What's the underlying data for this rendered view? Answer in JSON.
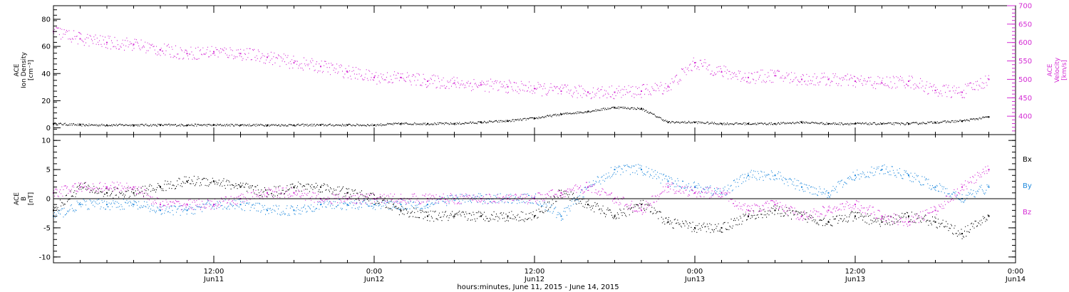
{
  "chart_data": {
    "type": "scatter",
    "x_range": [
      "2015-06-11T00:00",
      "2015-06-14T00:00"
    ],
    "x_ticks": [
      {
        "t": "2015-06-11T12:00",
        "time": "12:00",
        "date": "Jun11"
      },
      {
        "t": "2015-06-12T00:00",
        "time": "0:00",
        "date": "Jun12"
      },
      {
        "t": "2015-06-12T12:00",
        "time": "12:00",
        "date": "Jun12"
      },
      {
        "t": "2015-06-13T00:00",
        "time": "0:00",
        "date": "Jun13"
      },
      {
        "t": "2015-06-13T12:00",
        "time": "12:00",
        "date": "Jun13"
      },
      {
        "t": "2015-06-14T00:00",
        "time": "0:00",
        "date": "Jun14"
      }
    ],
    "xlabel": "hours:minutes, June 11, 2015 - June 14, 2015",
    "colors": {
      "black": "#000000",
      "magenta": "#d42ad4",
      "blue": "#1e88dc"
    },
    "panels": [
      {
        "id": "plasma",
        "left_axis": {
          "label_lines": [
            "ACE",
            "Ion Density",
            "[cm⁻³]"
          ],
          "range": [
            -5,
            90
          ],
          "ticks": [
            0,
            20,
            40,
            60,
            80
          ],
          "tick_labels": [
            "0",
            "20",
            "40",
            "60",
            "80"
          ]
        },
        "right_axis": {
          "label_lines": [
            "ACE",
            "Velocity",
            "[km/s]"
          ],
          "range": [
            350,
            700
          ],
          "ticks": [
            400,
            450,
            500,
            550,
            600,
            650,
            700
          ],
          "tick_labels": [
            "400",
            "450",
            "500",
            "550",
            "600",
            "650",
            "700"
          ],
          "color": "#d42ad4"
        },
        "series": [
          {
            "name": "density",
            "axis": "left",
            "color": "#000000",
            "t_hours": [
              0,
              2,
              4,
              6,
              8,
              10,
              12,
              14,
              16,
              18,
              20,
              22,
              24,
              26,
              28,
              30,
              32,
              34,
              36,
              38,
              40,
              42,
              44,
              46,
              48,
              50,
              52,
              54,
              56,
              58,
              60,
              62,
              64,
              66,
              68,
              70
            ],
            "values": [
              3,
              2,
              2,
              2,
              2,
              2,
              2,
              2,
              2,
              2,
              2,
              2,
              2,
              3,
              3,
              3,
              4,
              5,
              7,
              10,
              12,
              15,
              14,
              4,
              4,
              3,
              3,
              3,
              4,
              3,
              3,
              3,
              3,
              4,
              5,
              8
            ]
          },
          {
            "name": "velocity",
            "axis": "right",
            "color": "#d42ad4",
            "t_hours": [
              0,
              2,
              4,
              6,
              8,
              10,
              12,
              14,
              16,
              18,
              20,
              22,
              24,
              26,
              28,
              30,
              32,
              34,
              36,
              38,
              40,
              42,
              44,
              46,
              48,
              50,
              52,
              54,
              56,
              58,
              60,
              62,
              64,
              66,
              68,
              70
            ],
            "values": [
              630,
              610,
              600,
              595,
              580,
              570,
              575,
              570,
              560,
              545,
              535,
              520,
              505,
              505,
              495,
              490,
              485,
              480,
              475,
              468,
              465,
              465,
              468,
              480,
              545,
              520,
              505,
              510,
              500,
              500,
              495,
              490,
              495,
              470,
              465,
              500
            ]
          }
        ]
      },
      {
        "id": "field",
        "left_axis": {
          "label_lines": [
            "ACE",
            "B",
            "[nT]"
          ],
          "range": [
            -11,
            11
          ],
          "ticks": [
            -10,
            -5,
            0,
            5,
            10
          ],
          "tick_labels": [
            "-10",
            "-5",
            "0",
            "5",
            "10"
          ]
        },
        "zero_line": true,
        "legend": [
          {
            "label": "Bx",
            "color": "#000000"
          },
          {
            "label": "By",
            "color": "#1e88dc"
          },
          {
            "label": "Bz",
            "color": "#d42ad4"
          }
        ],
        "series": [
          {
            "name": "Bx",
            "color": "#000000",
            "t_hours": [
              0,
              2,
              4,
              6,
              8,
              10,
              12,
              14,
              16,
              18,
              20,
              22,
              24,
              26,
              28,
              30,
              32,
              34,
              36,
              38,
              40,
              42,
              44,
              46,
              48,
              50,
              52,
              54,
              56,
              58,
              60,
              62,
              64,
              66,
              68,
              70
            ],
            "values": [
              -2,
              2,
              1,
              1,
              2,
              3,
              3,
              2,
              1,
              2,
              2,
              1,
              0,
              -2,
              -3,
              -3,
              -3,
              -3,
              -3,
              1,
              -1,
              -3,
              -1,
              -4,
              -5,
              -5,
              -3,
              -2,
              -3,
              -4,
              -3,
              -4,
              -3,
              -4,
              -6,
              -3
            ]
          },
          {
            "name": "By",
            "color": "#1e88dc",
            "t_hours": [
              0,
              2,
              4,
              6,
              8,
              10,
              12,
              14,
              16,
              18,
              20,
              22,
              24,
              26,
              28,
              30,
              32,
              34,
              36,
              38,
              40,
              42,
              44,
              46,
              48,
              50,
              52,
              54,
              56,
              58,
              60,
              62,
              64,
              66,
              68,
              70
            ],
            "values": [
              -3,
              -1,
              -1,
              -1,
              -2,
              -2,
              -1,
              -1,
              -2,
              -2,
              -1,
              -1,
              -1,
              -1,
              -1,
              0,
              0,
              0,
              0,
              -3,
              2,
              5,
              5,
              3,
              2,
              1,
              4,
              4,
              2,
              1,
              4,
              5,
              4,
              2,
              0,
              2
            ]
          },
          {
            "name": "Bz",
            "color": "#d42ad4",
            "t_hours": [
              0,
              2,
              4,
              6,
              8,
              10,
              12,
              14,
              16,
              18,
              20,
              22,
              24,
              26,
              28,
              30,
              32,
              34,
              36,
              38,
              40,
              42,
              44,
              46,
              48,
              50,
              52,
              54,
              56,
              58,
              60,
              62,
              64,
              66,
              68,
              70
            ],
            "values": [
              1,
              2,
              2,
              2,
              -1,
              -1,
              -1,
              0,
              1,
              1,
              0,
              0,
              0,
              0,
              0,
              0,
              0,
              0,
              0,
              1,
              2,
              0,
              -2,
              2,
              1,
              1,
              -2,
              -1,
              -3,
              -2,
              -1,
              -3,
              -4,
              -2,
              2,
              5
            ]
          }
        ]
      }
    ]
  }
}
